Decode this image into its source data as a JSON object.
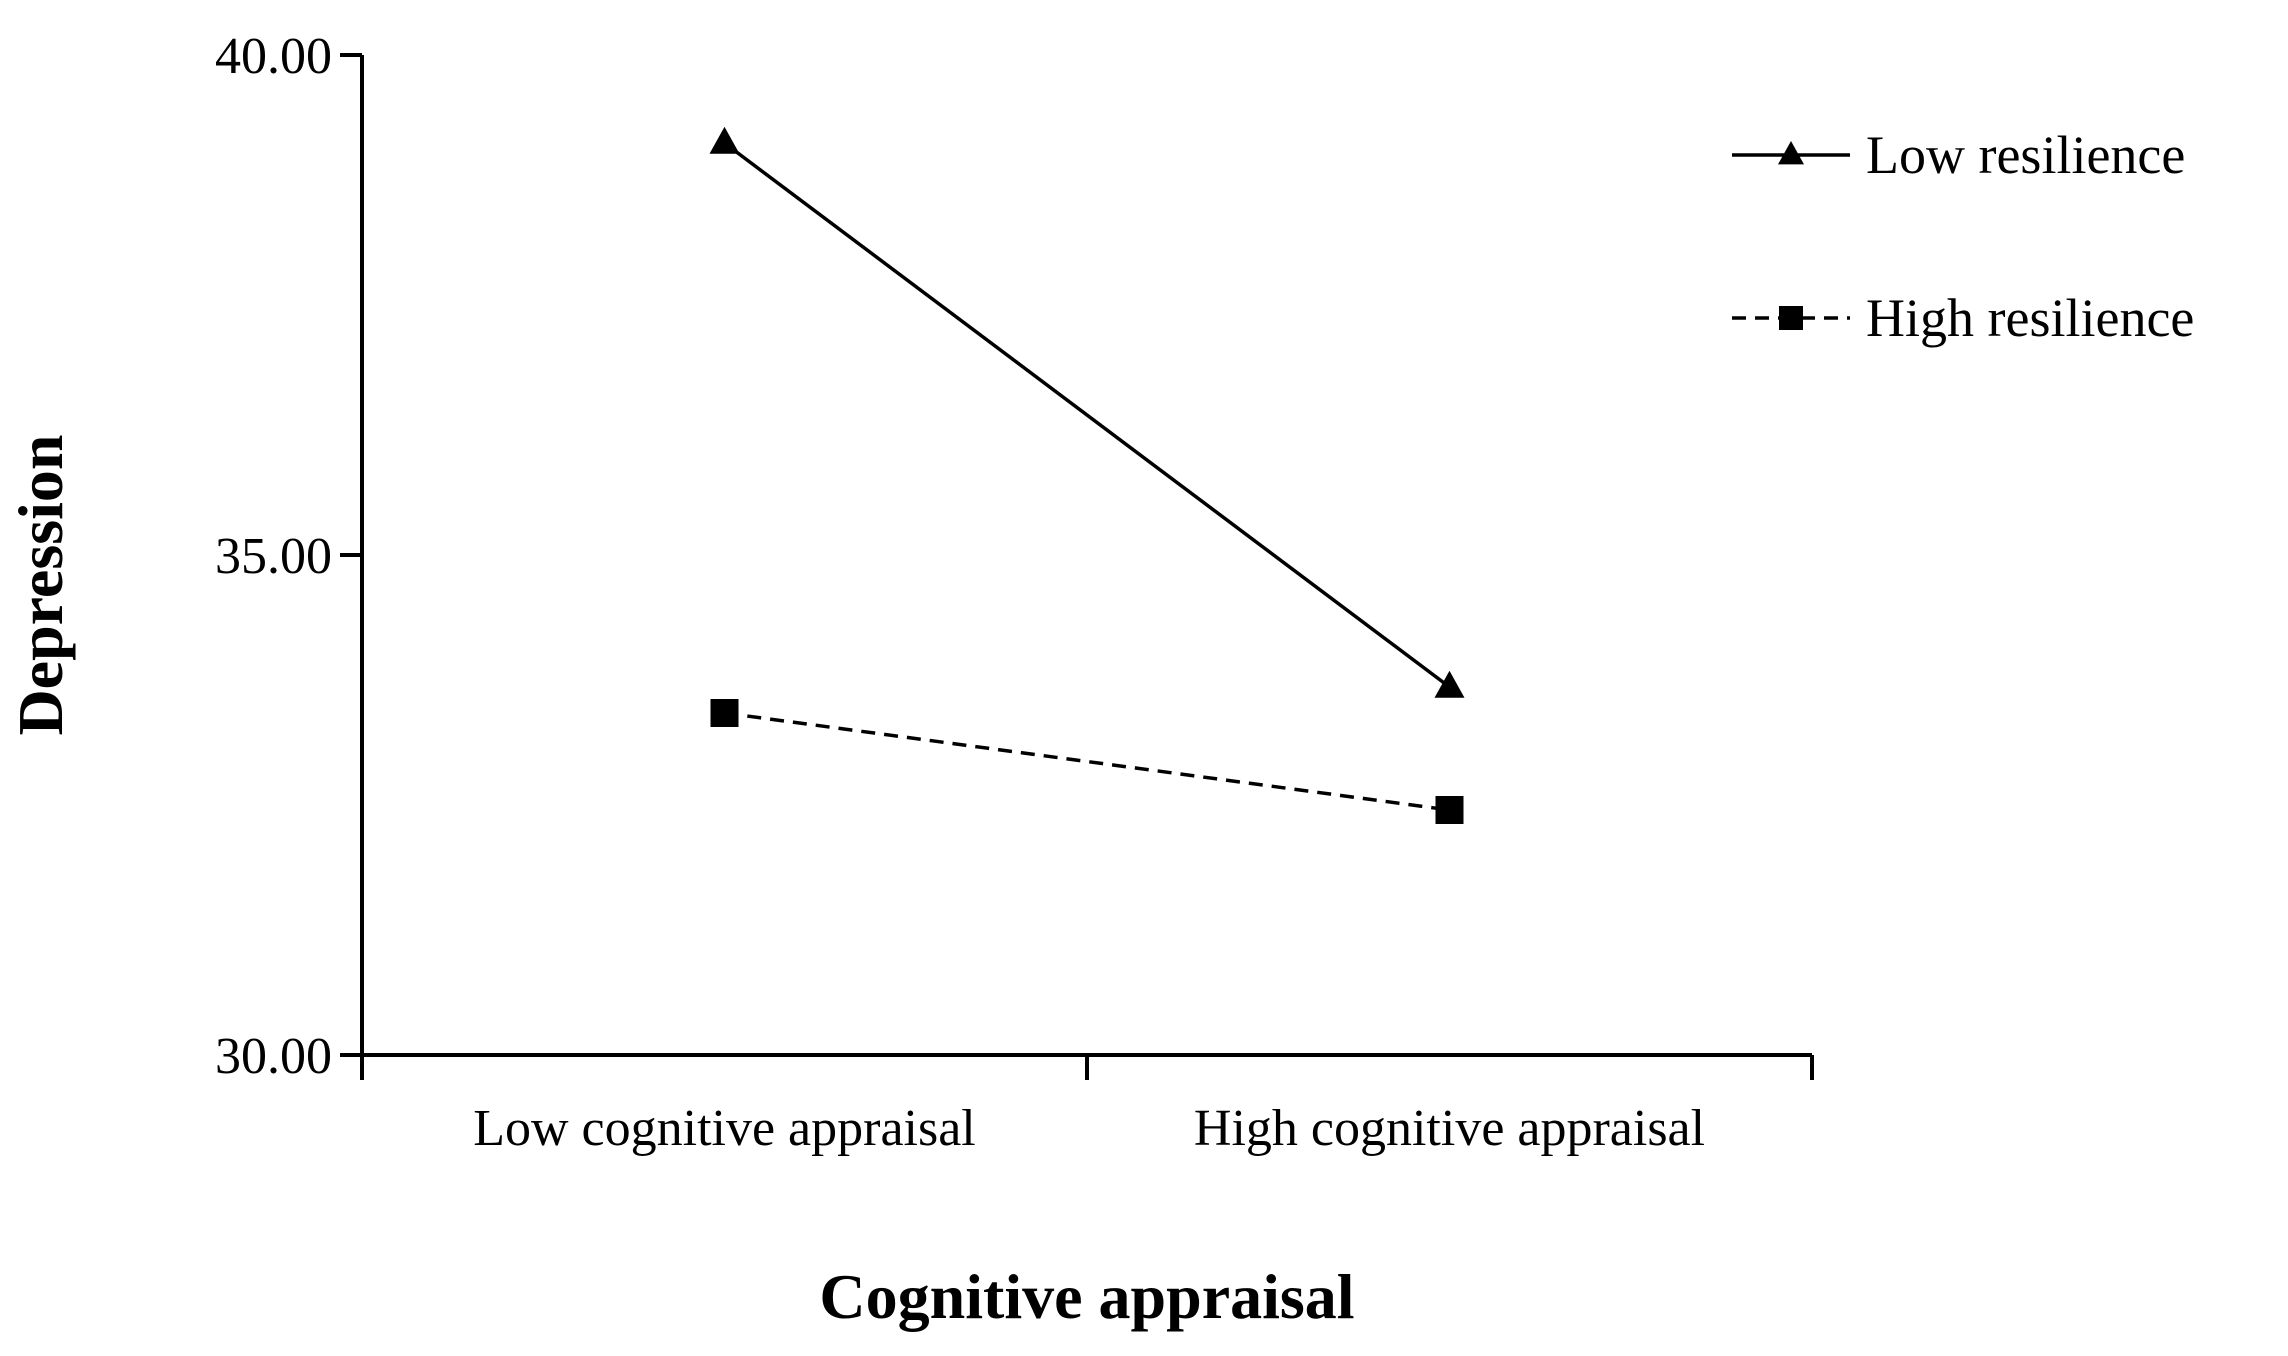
{
  "chart_data": {
    "type": "line",
    "title": "",
    "xlabel": "Cognitive appraisal",
    "ylabel": "Depression",
    "categories": [
      "Low cognitive appraisal",
      "High cognitive appraisal"
    ],
    "ylim": [
      30.0,
      40.0
    ],
    "yticks": [
      "30.00",
      "35.00",
      "40.00"
    ],
    "grid": false,
    "legend_position": "top-right",
    "series": [
      {
        "name": "Low resilience",
        "values": [
          39.12,
          33.68
        ],
        "marker": "triangle",
        "line_style": "solid",
        "color": "#000000"
      },
      {
        "name": "High resilience",
        "values": [
          33.42,
          32.45
        ],
        "marker": "square",
        "line_style": "dashed",
        "color": "#000000"
      }
    ]
  }
}
